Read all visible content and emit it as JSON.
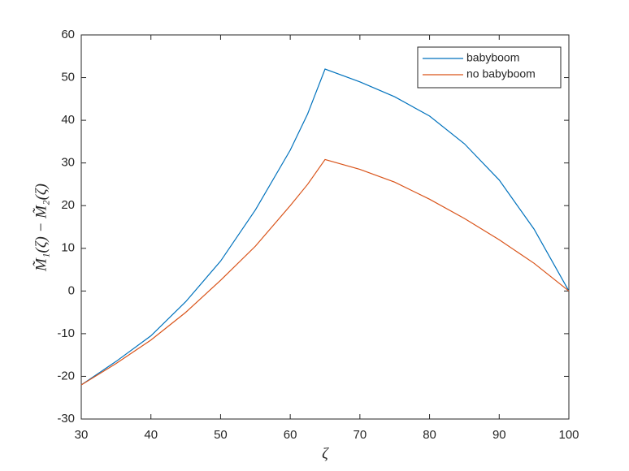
{
  "chart_data": {
    "type": "line",
    "x_label": "ζ",
    "y_label": "M̃₁(ζ) − M̃₂(ζ)",
    "x": [
      30,
      35,
      40,
      45,
      50,
      55,
      60,
      62.5,
      65,
      70,
      75,
      80,
      85,
      90,
      95,
      100
    ],
    "series": [
      {
        "name": "babyboom",
        "color": "#0072bd",
        "values": [
          -22,
          -16.5,
          -10.5,
          -2.5,
          7,
          19,
          33,
          41.5,
          52,
          49,
          45.5,
          41,
          34.5,
          26,
          14.5,
          0
        ]
      },
      {
        "name": "no babyboom",
        "color": "#d95319",
        "values": [
          -22,
          -17,
          -11.5,
          -5,
          2.5,
          10.5,
          20,
          25,
          30.8,
          28.5,
          25.5,
          21.5,
          17,
          12,
          6.5,
          0
        ]
      }
    ],
    "xlim": [
      30,
      100
    ],
    "xticks": [
      30,
      40,
      50,
      60,
      70,
      80,
      90,
      100
    ],
    "ylim": [
      -30,
      60
    ],
    "yticks": [
      -30,
      -20,
      -10,
      0,
      10,
      20,
      30,
      40,
      50,
      60
    ],
    "grid": false,
    "legend": "northeast"
  }
}
